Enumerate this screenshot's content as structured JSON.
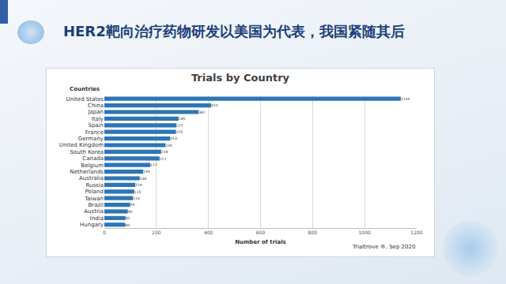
{
  "heading": "HER2靶向治疗药物研发以美国为代表，我国紧随其后",
  "chart_data": {
    "type": "bar",
    "orientation": "horizontal",
    "title": "Trials by Country",
    "ylabel": "Countries",
    "xlabel": "Number of trials",
    "annotations": [
      "Trialtrove ®, Sep 2020"
    ],
    "categories": [
      "United States",
      "China",
      "Japan",
      "Italy",
      "Spain",
      "France",
      "Germany",
      "United Kingdom",
      "South Korea",
      "Canada",
      "Belgium",
      "Netherlands",
      "Australia",
      "Russia",
      "Poland",
      "Taiwan",
      "Brazil",
      "Austria",
      "India",
      "Hungary"
    ],
    "values": [
      1139,
      410,
      362,
      285,
      277,
      275,
      253,
      235,
      218,
      212,
      177,
      149,
      136,
      119,
      115,
      110,
      99,
      90,
      81,
      80
    ],
    "color": "#2e75b6",
    "xlim": [
      0,
      1200
    ],
    "xticks": [
      0,
      200,
      400,
      600,
      800,
      1000,
      1200
    ],
    "grid": true,
    "data_labels": true
  }
}
